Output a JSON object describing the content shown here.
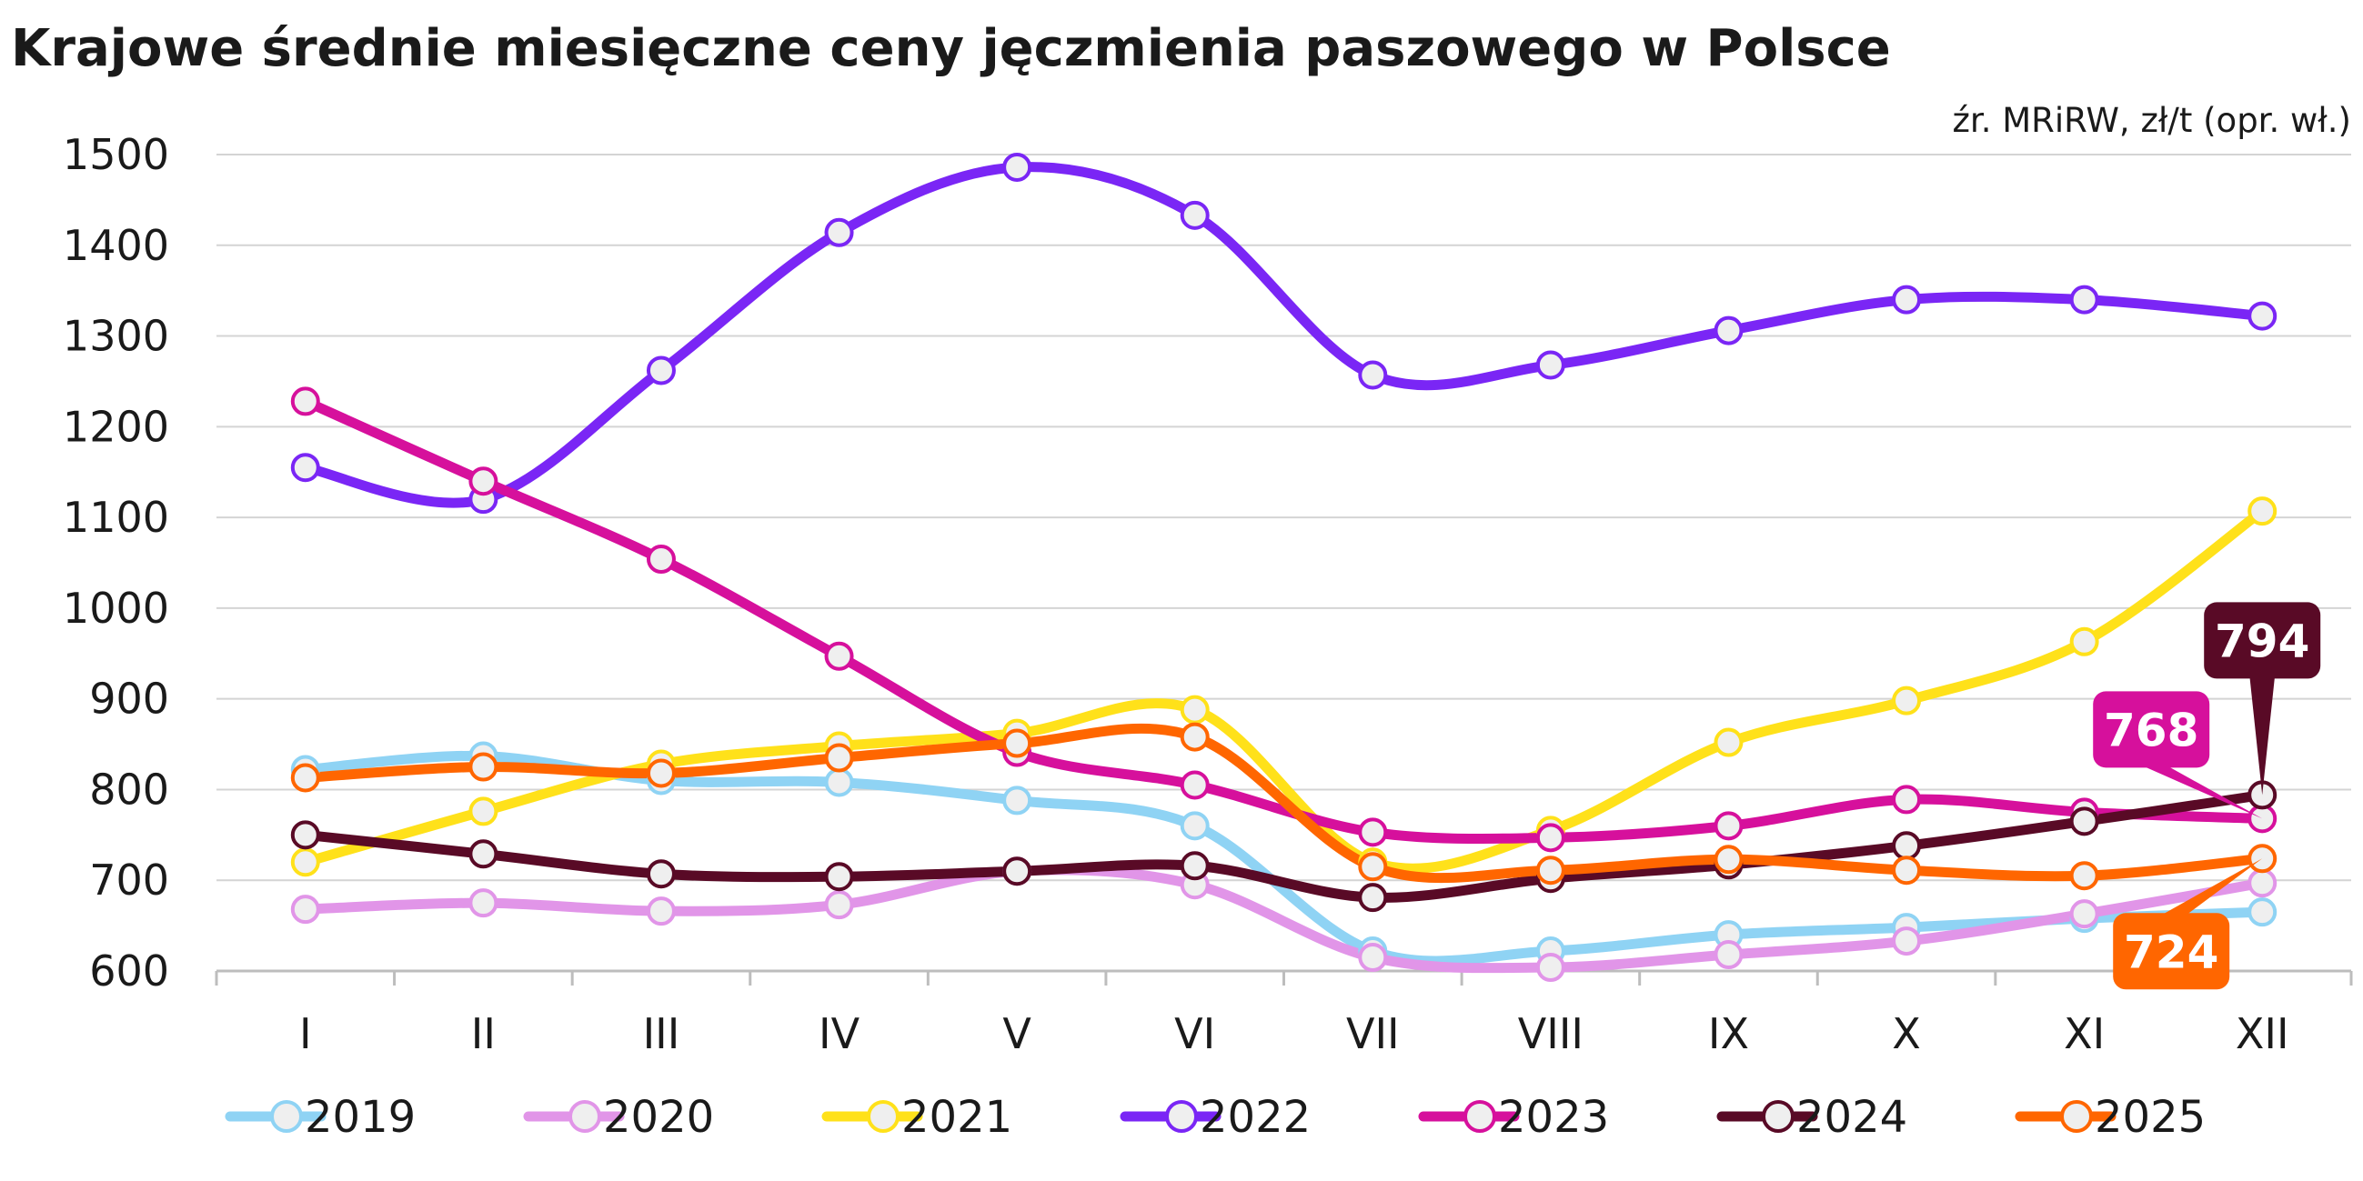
{
  "chart_data": {
    "type": "line",
    "title": "Krajowe średnie miesięczne ceny jęczmienia paszowego w Polsce",
    "source_note": "źr. MRiRW, zł/t (opr. wł.)",
    "categories": [
      "I",
      "II",
      "III",
      "IV",
      "V",
      "VI",
      "VII",
      "VIII",
      "IX",
      "X",
      "XI",
      "XII"
    ],
    "ylim": [
      600,
      1500
    ],
    "yticks": [
      600,
      700,
      800,
      900,
      1000,
      1100,
      1200,
      1300,
      1400,
      1500
    ],
    "grid": true,
    "legend_position": "bottom",
    "series": [
      {
        "name": "2019",
        "color": "#8fd3f4",
        "values": [
          822,
          837,
          810,
          808,
          788,
          760,
          622,
          622,
          640,
          648,
          658,
          665
        ]
      },
      {
        "name": "2020",
        "color": "#e195e8",
        "values": [
          668,
          675,
          666,
          673,
          710,
          695,
          615,
          604,
          618,
          633,
          663,
          697
        ]
      },
      {
        "name": "2021",
        "color": "#ffe11a",
        "values": [
          720,
          776,
          828,
          848,
          862,
          888,
          720,
          755,
          852,
          898,
          963,
          1107
        ]
      },
      {
        "name": "2022",
        "color": "#7a26f5",
        "values": [
          1155,
          1120,
          1262,
          1414,
          1486,
          1433,
          1257,
          1268,
          1306,
          1340,
          1340,
          1322
        ]
      },
      {
        "name": "2023",
        "color": "#d6109c",
        "values": [
          1228,
          1140,
          1054,
          947,
          841,
          805,
          753,
          747,
          760,
          789,
          775,
          768
        ]
      },
      {
        "name": "2024",
        "color": "#590a26",
        "values": [
          750,
          729,
          707,
          704,
          710,
          716,
          681,
          702,
          717,
          738,
          765,
          794
        ]
      },
      {
        "name": "2025",
        "color": "#ff6600",
        "values": [
          813,
          825,
          818,
          835,
          851,
          858,
          715,
          711,
          723,
          711,
          705,
          724
        ]
      }
    ],
    "callouts": [
      {
        "series": "2024",
        "label": "794",
        "color": "#590a26"
      },
      {
        "series": "2023",
        "label": "768",
        "color": "#d6109c"
      },
      {
        "series": "2025",
        "label": "724",
        "color": "#ff6600"
      }
    ]
  }
}
